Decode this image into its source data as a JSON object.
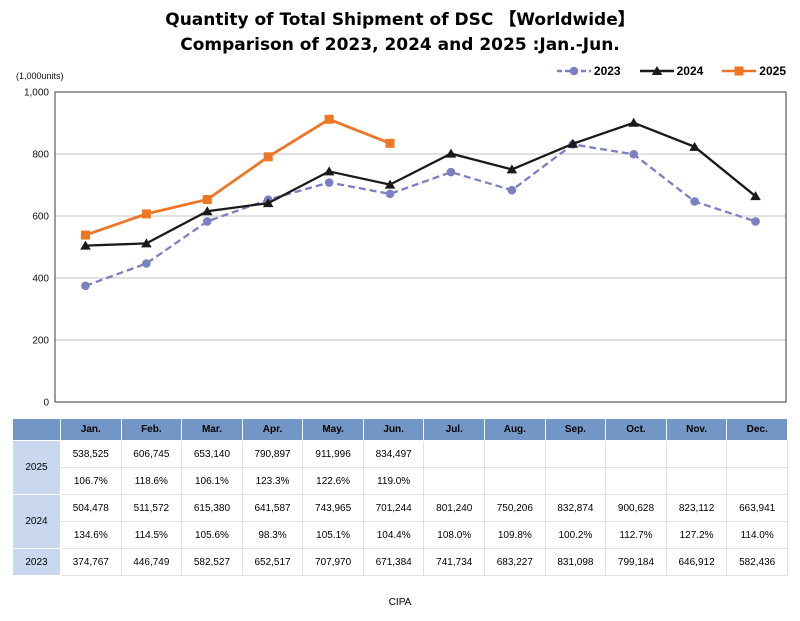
{
  "title": {
    "line1": "Quantity of Total Shipment of DSC 【Worldwide】",
    "line2": "Comparison of 2023, 2024 and 2025 :Jan.-Jun."
  },
  "footer": "CIPA",
  "chart_data": {
    "type": "line",
    "title": "Quantity of Total Shipment of DSC 【Worldwide】 Comparison of 2023, 2024 and 2025 :Jan.-Jun.",
    "unit_label": "(1,000units)",
    "categories": [
      "Jan.",
      "Feb.",
      "Mar.",
      "Apr.",
      "May.",
      "Jun.",
      "Jul.",
      "Aug.",
      "Sep.",
      "Oct.",
      "Nov.",
      "Dec."
    ],
    "xlabel": "",
    "ylabel": "(1,000units)",
    "ylim": [
      0,
      1000
    ],
    "y_ticks": [
      0,
      200,
      400,
      600,
      800,
      1000
    ],
    "y_tick_labels": [
      "0",
      "200",
      "400",
      "600",
      "800",
      "1,000"
    ],
    "scale_divisor": 1000,
    "grid": "horizontal",
    "legend_position": "top-right",
    "series": [
      {
        "name": "2023",
        "color": "#7b7fc4",
        "line": "dashed",
        "marker": "circle",
        "values": [
          374767,
          446749,
          582527,
          652517,
          707970,
          671384,
          741734,
          683227,
          831098,
          799184,
          646912,
          582436
        ]
      },
      {
        "name": "2024",
        "color": "#1a1a1a",
        "line": "solid",
        "marker": "triangle",
        "values": [
          504478,
          511572,
          615380,
          641587,
          743965,
          701244,
          801240,
          750206,
          832874,
          900628,
          823112,
          663941
        ]
      },
      {
        "name": "2025",
        "color": "#ee7624",
        "line": "solid",
        "marker": "square",
        "values": [
          538525,
          606745,
          653140,
          790897,
          911996,
          834497,
          null,
          null,
          null,
          null,
          null,
          null
        ]
      }
    ]
  },
  "table": {
    "corner": "",
    "months": [
      "Jan.",
      "Feb.",
      "Mar.",
      "Apr.",
      "May.",
      "Jun.",
      "Jul.",
      "Aug.",
      "Sep.",
      "Oct.",
      "Nov.",
      "Dec."
    ],
    "groups": [
      {
        "label": "2025",
        "rows": [
          [
            "538,525",
            "606,745",
            "653,140",
            "790,897",
            "911,996",
            "834,497",
            "",
            "",
            "",
            "",
            "",
            ""
          ],
          [
            "106.7%",
            "118.6%",
            "106.1%",
            "123.3%",
            "122.6%",
            "119.0%",
            "",
            "",
            "",
            "",
            "",
            ""
          ]
        ]
      },
      {
        "label": "2024",
        "rows": [
          [
            "504,478",
            "511,572",
            "615,380",
            "641,587",
            "743,965",
            "701,244",
            "801,240",
            "750,206",
            "832,874",
            "900,628",
            "823,112",
            "663,941"
          ],
          [
            "134.6%",
            "114.5%",
            "105.6%",
            "98.3%",
            "105.1%",
            "104.4%",
            "108.0%",
            "109.8%",
            "100.2%",
            "112.7%",
            "127.2%",
            "114.0%"
          ]
        ]
      },
      {
        "label": "2023",
        "rows": [
          [
            "374,767",
            "446,749",
            "582,527",
            "652,517",
            "707,970",
            "671,384",
            "741,734",
            "683,227",
            "831,098",
            "799,184",
            "646,912",
            "582,436"
          ]
        ]
      }
    ]
  }
}
